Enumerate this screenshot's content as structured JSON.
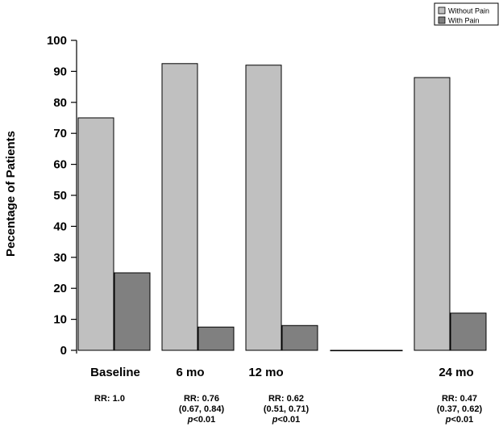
{
  "chart_data": {
    "type": "bar",
    "ylabel": "Pecentage of Patients",
    "ylim": [
      0,
      100
    ],
    "yticks": [
      0,
      10,
      20,
      30,
      40,
      50,
      60,
      70,
      80,
      90,
      100
    ],
    "categories": [
      "Baseline",
      "6 mo",
      "12 mo",
      "",
      "24 mo"
    ],
    "series": [
      {
        "name": "Without Pain",
        "color": "#c0c0c0",
        "values": [
          75,
          92.5,
          92,
          0,
          88
        ]
      },
      {
        "name": "With Pain",
        "color": "#808080",
        "values": [
          25,
          7.5,
          8,
          0,
          12
        ]
      }
    ],
    "legend": "top-right",
    "grid": false,
    "annotations": [
      {
        "category": "Baseline",
        "lines": [
          "RR: 1.0"
        ]
      },
      {
        "category": "6 mo",
        "lines": [
          "RR: 0.76",
          "(0.67, 0.84)",
          "p<0.01"
        ]
      },
      {
        "category": "12 mo",
        "lines": [
          "RR: 0.62",
          "(0.51, 0.71)",
          "p<0.01"
        ]
      },
      {
        "category": "24 mo",
        "lines": [
          "RR: 0.47",
          "(0.37, 0.62)",
          "p<0.01"
        ]
      }
    ]
  }
}
